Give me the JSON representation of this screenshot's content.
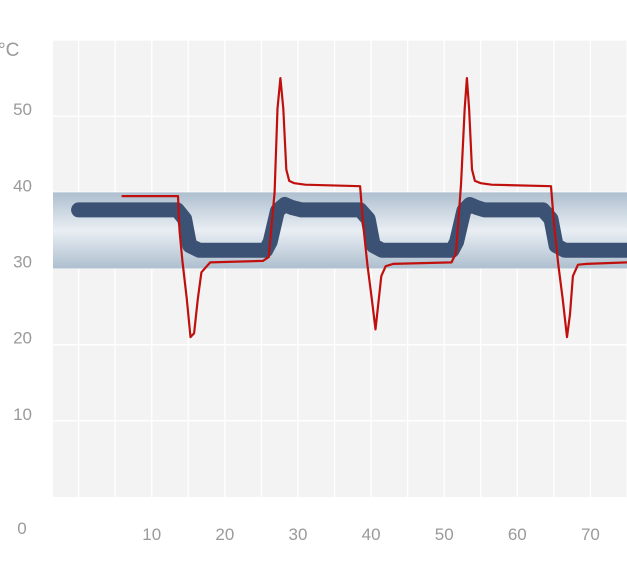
{
  "chart_data": {
    "type": "line",
    "unit_label": "°C",
    "origin_label": "0",
    "xlim": [
      -3.5,
      75
    ],
    "ylim": [
      0,
      60
    ],
    "x_ticks": [
      10,
      20,
      30,
      40,
      50,
      60,
      70
    ],
    "y_ticks": [
      10,
      20,
      30,
      40,
      50
    ],
    "grid": true,
    "band": {
      "from": 30,
      "to": 40
    },
    "colors": {
      "plot_bg": "#f3f3f3",
      "grid": "#ffffff",
      "band": "#c7d3de",
      "thick": "#3b5274",
      "thin": "#c0100e"
    },
    "series": [
      {
        "style": "thick",
        "x": [
          0,
          13.5,
          14.5,
          15.2,
          16.5,
          25.6,
          26.2,
          27.2,
          28.2,
          29.2,
          30.5,
          38.5,
          39.6,
          40.3,
          41.5,
          51.1,
          51.7,
          52.7,
          53.5,
          54.5,
          55.5,
          63.5,
          64.6,
          65.3,
          66.5,
          75
        ],
        "y": [
          37.7,
          37.7,
          36.5,
          33,
          32.4,
          32.4,
          33.5,
          37.6,
          38.4,
          38,
          37.7,
          37.7,
          36.5,
          33,
          32.4,
          32.4,
          33.5,
          37.6,
          38.4,
          38,
          37.7,
          37.7,
          36.5,
          33,
          32.4,
          32.4
        ]
      },
      {
        "style": "thin",
        "x": [
          6,
          13.6,
          13.8,
          14.2,
          14.8,
          15.3,
          15.8,
          16.3,
          16.8,
          18,
          25.2,
          26,
          26.8,
          27.2,
          27.6,
          28,
          28.4,
          28.8,
          29.5,
          31,
          38.5,
          38.9,
          39.5,
          40.1,
          40.6,
          41,
          41.4,
          42,
          43,
          51,
          51.6,
          52.3,
          52.8,
          53.1,
          53.4,
          53.8,
          54.2,
          55,
          56.5,
          64.6,
          65,
          65.6,
          66.2,
          66.8,
          67.2,
          67.6,
          68.3,
          69.5,
          75
        ],
        "y": [
          39.5,
          39.5,
          35,
          31,
          26,
          21,
          21.5,
          26,
          29.5,
          30.8,
          31,
          31.5,
          40,
          51,
          55,
          51,
          43,
          41.5,
          41.2,
          41,
          40.8,
          36,
          30.5,
          26,
          22,
          25.5,
          29,
          30.3,
          30.6,
          30.8,
          32,
          41,
          51,
          55,
          51,
          43,
          41.5,
          41.2,
          41,
          40.8,
          36,
          30.5,
          26,
          21,
          24,
          29,
          30.5,
          30.6,
          30.8
        ]
      }
    ]
  }
}
